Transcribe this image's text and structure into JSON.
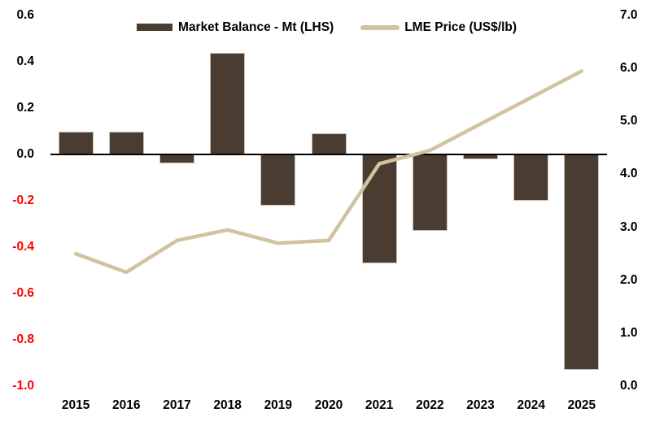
{
  "chart_data": {
    "type": "bar-line-combo",
    "title": "",
    "grid": false,
    "legend_position": "top",
    "categories": [
      "2015",
      "2016",
      "2017",
      "2018",
      "2019",
      "2020",
      "2021",
      "2022",
      "2023",
      "2024",
      "2025"
    ],
    "series": [
      {
        "name": "Market Balance - Mt (LHS)",
        "chart_type": "bar",
        "axis": "left",
        "color": "#4A3C30",
        "values": [
          0.1,
          0.1,
          -0.04,
          0.44,
          -0.22,
          0.09,
          -0.47,
          -0.33,
          -0.02,
          -0.2,
          -0.93
        ]
      },
      {
        "name": "LME Price (US$/lb)",
        "chart_type": "line",
        "axis": "right",
        "color": "#D2C3A0",
        "values": [
          2.5,
          2.15,
          2.75,
          2.95,
          2.7,
          2.75,
          4.2,
          4.45,
          4.95,
          5.45,
          5.95
        ]
      }
    ],
    "axes": {
      "left": {
        "min": -1.0,
        "max": 0.6,
        "step": 0.2,
        "tick_labels": [
          "0.6",
          "0.4",
          "0.2",
          "0.0",
          "-0.2",
          "-0.4",
          "-0.6",
          "-0.8",
          "-1.0"
        ],
        "tick_color": "#000000",
        "negative_tick_color": "#FF0000"
      },
      "right": {
        "min": 0.0,
        "max": 7.0,
        "step": 1.0,
        "tick_labels": [
          "7.0",
          "6.0",
          "5.0",
          "4.0",
          "3.0",
          "2.0",
          "1.0",
          "0.0"
        ],
        "tick_color": "#000000"
      }
    },
    "zero_axis_line_color": "#000000",
    "background_color": "#FFFFFF"
  }
}
